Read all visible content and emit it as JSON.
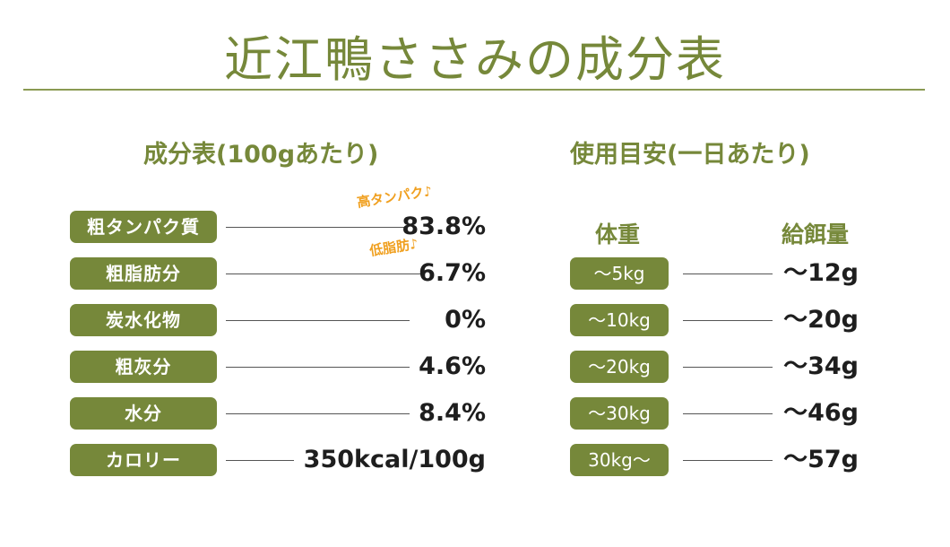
{
  "title": "近江鴨ささみの成分表",
  "composition": {
    "heading": "成分表(100gあたり)",
    "rows": [
      {
        "label": "粗タンパク質",
        "value": "83.8%",
        "note": "高タンパク♪"
      },
      {
        "label": "粗脂肪分",
        "value": "6.7%",
        "note": "低脂肪♪"
      },
      {
        "label": "炭水化物",
        "value": "0%"
      },
      {
        "label": "粗灰分",
        "value": "4.6%"
      },
      {
        "label": "水分",
        "value": "8.4%"
      },
      {
        "label": "カロリー",
        "value": "350kcal/100g"
      }
    ]
  },
  "feeding": {
    "heading": "使用目安(一日あたり)",
    "col_weight": "体重",
    "col_amount": "給餌量",
    "rows": [
      {
        "weight": "〜5kg",
        "amount": "〜12g"
      },
      {
        "weight": "〜10kg",
        "amount": "〜20g"
      },
      {
        "weight": "〜20kg",
        "amount": "〜34g"
      },
      {
        "weight": "〜30kg",
        "amount": "〜46g"
      },
      {
        "weight": "30kg〜",
        "amount": "〜57g"
      }
    ]
  },
  "colors": {
    "accent": "#76883a",
    "note": "#f0a020",
    "text": "#1e1e1e"
  }
}
